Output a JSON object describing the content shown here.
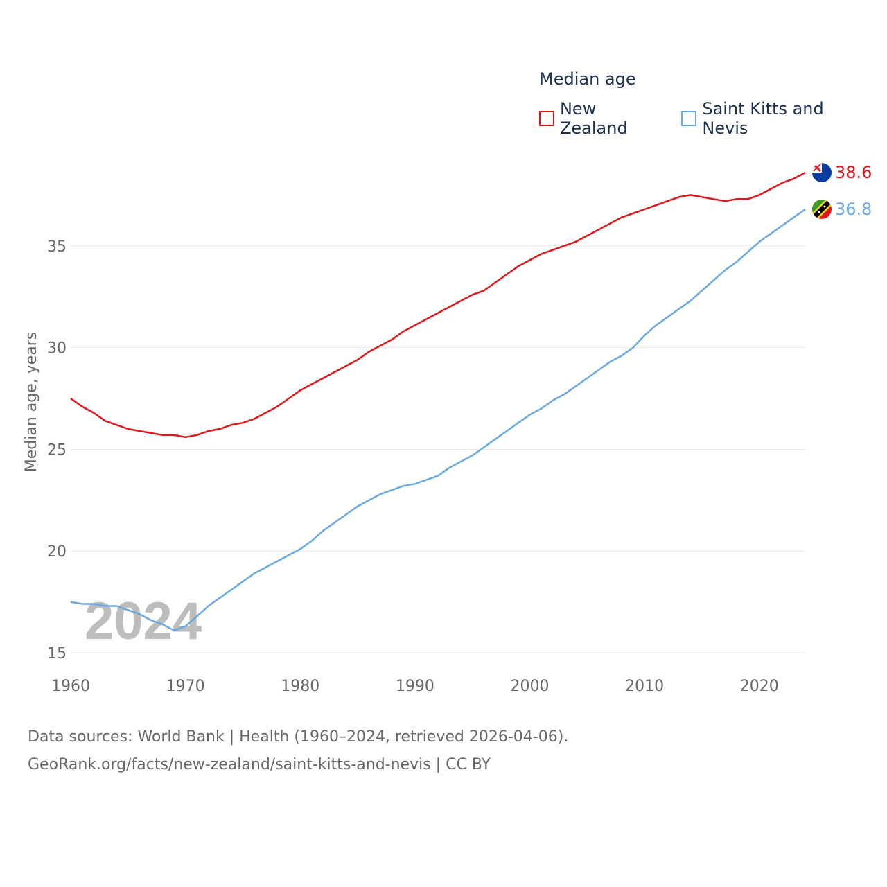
{
  "legend": {
    "title": "Median age",
    "items": [
      {
        "label": "New Zealand",
        "color": "#e0161b"
      },
      {
        "label": "Saint Kitts and Nevis",
        "color": "#6aa8e2"
      }
    ]
  },
  "year_watermark": "2024",
  "sources": {
    "line1": "Data sources: World Bank | Health (1960–2024, retrieved 2026-04-06).",
    "line2": "GeoRank.org/facts/new-zealand/saint-kitts-and-nevis | CC BY"
  },
  "chart_data": {
    "type": "line",
    "title": "Median age",
    "xlabel": "",
    "ylabel": "Median age, years",
    "xlim": [
      1960,
      2024
    ],
    "ylim": [
      15,
      40
    ],
    "x_ticks": [
      "1960",
      "1970",
      "1980",
      "1990",
      "2000",
      "2010",
      "2020"
    ],
    "y_ticks": [
      "15",
      "20",
      "25",
      "30",
      "35"
    ],
    "grid": true,
    "legend_position": "top-right",
    "x": [
      1960,
      1961,
      1962,
      1963,
      1964,
      1965,
      1966,
      1967,
      1968,
      1969,
      1970,
      1971,
      1972,
      1973,
      1974,
      1975,
      1976,
      1977,
      1978,
      1979,
      1980,
      1981,
      1982,
      1983,
      1984,
      1985,
      1986,
      1987,
      1988,
      1989,
      1990,
      1991,
      1992,
      1993,
      1994,
      1995,
      1996,
      1997,
      1998,
      1999,
      2000,
      2001,
      2002,
      2003,
      2004,
      2005,
      2006,
      2007,
      2008,
      2009,
      2010,
      2011,
      2012,
      2013,
      2014,
      2015,
      2016,
      2017,
      2018,
      2019,
      2020,
      2021,
      2022,
      2023,
      2024
    ],
    "series": [
      {
        "name": "New Zealand",
        "color": "#e0161b",
        "end_label": "38.6",
        "values": [
          27.5,
          27.1,
          26.8,
          26.4,
          26.2,
          26.0,
          25.9,
          25.8,
          25.7,
          25.7,
          25.6,
          25.7,
          25.9,
          26.0,
          26.2,
          26.3,
          26.5,
          26.8,
          27.1,
          27.5,
          27.9,
          28.2,
          28.5,
          28.8,
          29.1,
          29.4,
          29.8,
          30.1,
          30.4,
          30.8,
          31.1,
          31.4,
          31.7,
          32.0,
          32.3,
          32.6,
          32.8,
          33.2,
          33.6,
          34.0,
          34.3,
          34.6,
          34.8,
          35.0,
          35.2,
          35.5,
          35.8,
          36.1,
          36.4,
          36.6,
          36.8,
          37.0,
          37.2,
          37.4,
          37.5,
          37.4,
          37.3,
          37.2,
          37.3,
          37.3,
          37.5,
          37.8,
          38.1,
          38.3,
          38.6
        ]
      },
      {
        "name": "Saint Kitts and Nevis",
        "color": "#6aa8e2",
        "end_label": "36.8",
        "values": [
          17.5,
          17.4,
          17.4,
          17.3,
          17.3,
          17.1,
          16.9,
          16.6,
          16.4,
          16.1,
          16.3,
          16.8,
          17.3,
          17.7,
          18.1,
          18.5,
          18.9,
          19.2,
          19.5,
          19.8,
          20.1,
          20.5,
          21.0,
          21.4,
          21.8,
          22.2,
          22.5,
          22.8,
          23.0,
          23.2,
          23.3,
          23.5,
          23.7,
          24.1,
          24.4,
          24.7,
          25.1,
          25.5,
          25.9,
          26.3,
          26.7,
          27.0,
          27.4,
          27.7,
          28.1,
          28.5,
          28.9,
          29.3,
          29.6,
          30.0,
          30.6,
          31.1,
          31.5,
          31.9,
          32.3,
          32.8,
          33.3,
          33.8,
          34.2,
          34.7,
          35.2,
          35.6,
          36.0,
          36.4,
          36.8
        ]
      }
    ]
  }
}
